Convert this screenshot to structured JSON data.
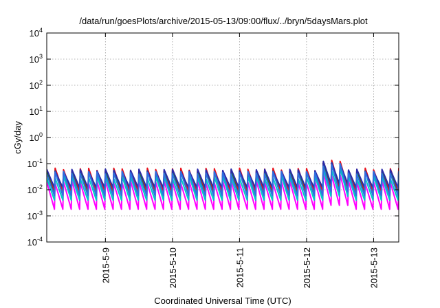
{
  "chart_data": {
    "type": "line",
    "title": "/data/run/goesPlots/archive/2015-05-13/09:00/flux/../bryn/5daysMars.plot",
    "xlabel": "Coordinated Universal Time (UTC)",
    "ylabel": "cGy/day",
    "y_scale": "log",
    "ylim": [
      0.0001,
      10000
    ],
    "xlim": [
      "2015-05-08 03:00",
      "2015-05-13 09:00"
    ],
    "grid": true,
    "legend": "none",
    "y_ticks": [
      {
        "value": 0.0001,
        "base": "10",
        "exp": "-4"
      },
      {
        "value": 0.001,
        "base": "10",
        "exp": "-3"
      },
      {
        "value": 0.01,
        "base": "10",
        "exp": "-2"
      },
      {
        "value": 0.1,
        "base": "10",
        "exp": "-1"
      },
      {
        "value": 1,
        "base": "10",
        "exp": "0"
      },
      {
        "value": 10,
        "base": "10",
        "exp": "1"
      },
      {
        "value": 100,
        "base": "10",
        "exp": "2"
      },
      {
        "value": 1000,
        "base": "10",
        "exp": "3"
      },
      {
        "value": 10000,
        "base": "10",
        "exp": "4"
      }
    ],
    "x_ticks": [
      {
        "value": "2015-05-09 00:00",
        "label": "2015-5-9"
      },
      {
        "value": "2015-05-10 00:00",
        "label": "2015-5-10"
      },
      {
        "value": "2015-05-11 00:00",
        "label": "2015-5-11"
      },
      {
        "value": "2015-05-12 00:00",
        "label": "2015-5-12"
      },
      {
        "value": "2015-05-13 00:00",
        "label": "2015-5-13"
      }
    ],
    "series": [
      {
        "color": "#e8101b",
        "peak": 0.06,
        "trough": 0.009
      },
      {
        "color": "#1f7a1f",
        "peak": 0.05,
        "trough": 0.006
      },
      {
        "color": "#2a2aa8",
        "peak": 0.055,
        "trough": 0.012
      },
      {
        "color": "#ff00ff",
        "peak": 0.02,
        "trough": 0.0018
      },
      {
        "color": "#00c8c8",
        "peak": 0.03,
        "trough": 0.004
      },
      {
        "color": "#2f6fe0",
        "peak": 0.045,
        "trough": 0.006
      }
    ]
  }
}
